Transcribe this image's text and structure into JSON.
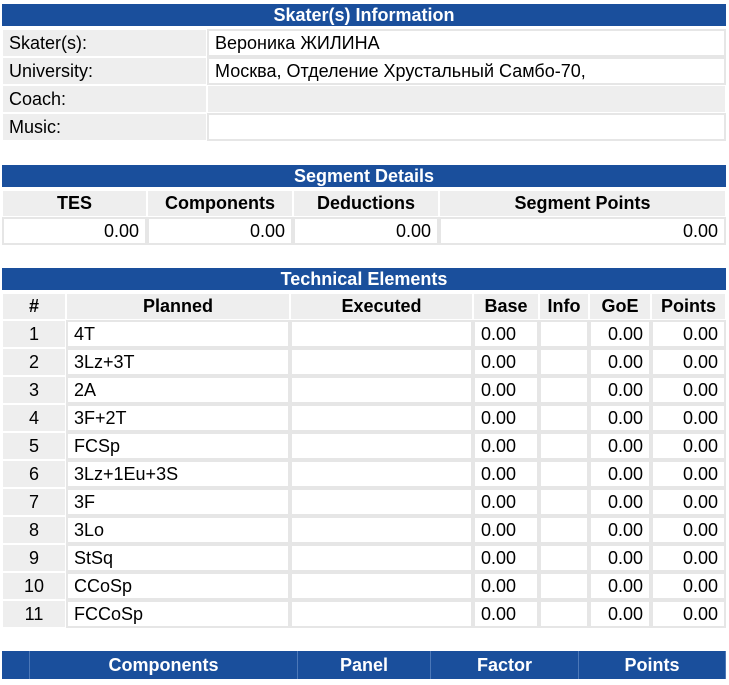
{
  "skater_info": {
    "title": "Skater(s) Information",
    "rows": [
      {
        "label": "Skater(s):",
        "value": "Вероника ЖИЛИНА"
      },
      {
        "label": "University:",
        "value": "Москва, Отделение Хрустальный Самбо-70,"
      },
      {
        "label": "Coach:",
        "value": ""
      },
      {
        "label": "Music:",
        "value": ""
      }
    ]
  },
  "segment": {
    "title": "Segment Details",
    "headers": [
      "TES",
      "Components",
      "Deductions",
      "Segment Points"
    ],
    "values": [
      "0.00",
      "0.00",
      "0.00",
      "0.00"
    ]
  },
  "technical": {
    "title": "Technical Elements",
    "headers": [
      "#",
      "Planned",
      "Executed",
      "Base",
      "Info",
      "GoE",
      "Points"
    ],
    "rows": [
      {
        "n": "1",
        "planned": "4T",
        "executed": "",
        "base": "0.00",
        "info": "",
        "goe": "0.00",
        "points": "0.00"
      },
      {
        "n": "2",
        "planned": "3Lz+3T",
        "executed": "",
        "base": "0.00",
        "info": "",
        "goe": "0.00",
        "points": "0.00"
      },
      {
        "n": "3",
        "planned": "2A",
        "executed": "",
        "base": "0.00",
        "info": "",
        "goe": "0.00",
        "points": "0.00"
      },
      {
        "n": "4",
        "planned": "3F+2T",
        "executed": "",
        "base": "0.00",
        "info": "",
        "goe": "0.00",
        "points": "0.00"
      },
      {
        "n": "5",
        "planned": "FCSp",
        "executed": "",
        "base": "0.00",
        "info": "",
        "goe": "0.00",
        "points": "0.00"
      },
      {
        "n": "6",
        "planned": "3Lz+1Eu+3S",
        "executed": "",
        "base": "0.00",
        "info": "",
        "goe": "0.00",
        "points": "0.00"
      },
      {
        "n": "7",
        "planned": "3F",
        "executed": "",
        "base": "0.00",
        "info": "",
        "goe": "0.00",
        "points": "0.00"
      },
      {
        "n": "8",
        "planned": "3Lo",
        "executed": "",
        "base": "0.00",
        "info": "",
        "goe": "0.00",
        "points": "0.00"
      },
      {
        "n": "9",
        "planned": "StSq",
        "executed": "",
        "base": "0.00",
        "info": "",
        "goe": "0.00",
        "points": "0.00"
      },
      {
        "n": "10",
        "planned": "CCoSp",
        "executed": "",
        "base": "0.00",
        "info": "",
        "goe": "0.00",
        "points": "0.00"
      },
      {
        "n": "11",
        "planned": "FCCoSp",
        "executed": "",
        "base": "0.00",
        "info": "",
        "goe": "0.00",
        "points": "0.00"
      }
    ]
  },
  "components": {
    "headers": [
      "Components",
      "Panel",
      "Factor",
      "Points"
    ]
  },
  "colors": {
    "header_blue": "#1a4f9c",
    "cell_gray": "#eeeeee"
  }
}
